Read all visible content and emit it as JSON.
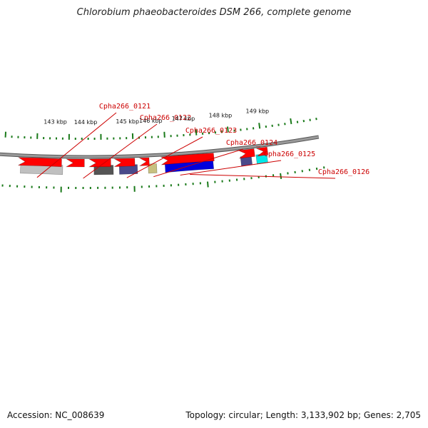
{
  "title": "Chlorobium phaeobacteroides DSM 266, complete genome",
  "footer": {
    "accession": "Accession: NC_008639",
    "topology": "Topology: circular; Length: 3,133,902 bp; Genes: 2,705"
  },
  "colors": {
    "label_red": "#cc0000",
    "tick_green": "#1a7a1a",
    "backbone": "#808080",
    "cds": "#ff0000",
    "cyan": "#00e8e8",
    "silver": "#c0c0c0",
    "dark_gray": "#555555",
    "slate": "#4a4a8a",
    "khaki": "#c8c080",
    "blue": "#0000dd"
  },
  "scale_labels": [
    "143 kbp",
    "144 kbp",
    "145 kbp",
    "146 kbp",
    "147 kbp",
    "148 kbp",
    "149 kbp"
  ],
  "gene_labels": [
    "Cpha266_0121",
    "Cpha266_0122",
    "Cpha266_0123",
    "Cpha266_0124",
    "Cpha266_0125",
    "Cpha266_0126"
  ],
  "feature_kinds": {
    "top_track": [
      "cyan",
      "silver",
      "dark_gray",
      "slate",
      "khaki",
      "blue",
      "slate",
      "cyan"
    ],
    "bottom_track": [
      "cds",
      "cds",
      "cds",
      "cds",
      "cds",
      "cds",
      "cds",
      "cds",
      "cds"
    ]
  }
}
